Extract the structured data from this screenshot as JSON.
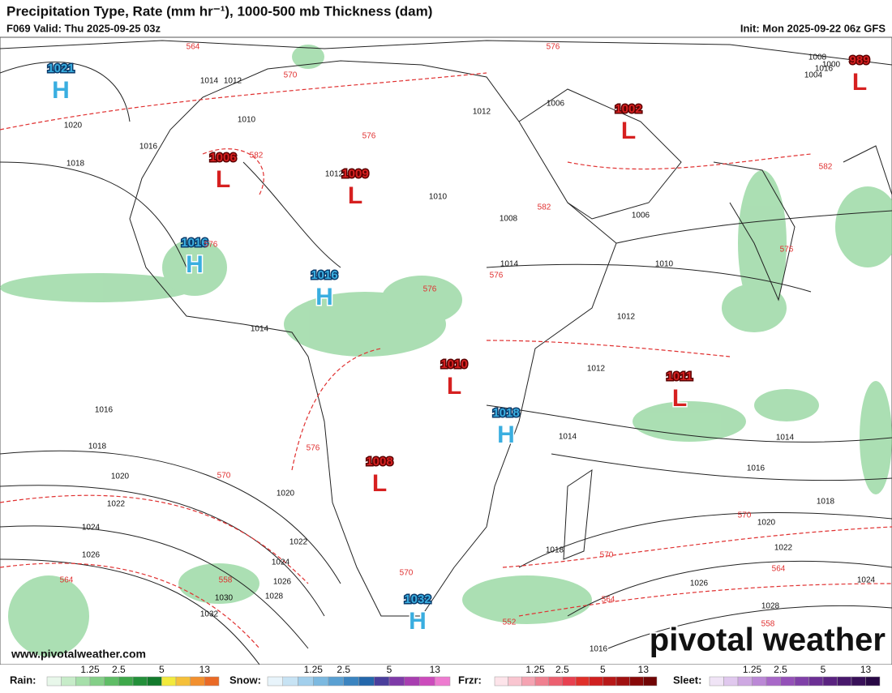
{
  "header": {
    "title": "Precipitation Type, Rate (mm hr⁻¹), 1000-500 mb Thickness (dam)",
    "valid": "F069 Valid: Thu 2025-09-25 03z",
    "init": "Init: Mon 2025-09-22 06z GFS"
  },
  "map": {
    "centers": [
      {
        "kind": "H",
        "value": "1021"
      },
      {
        "kind": "L",
        "value": "1006"
      },
      {
        "kind": "L",
        "value": "1009"
      },
      {
        "kind": "L",
        "value": "1002"
      },
      {
        "kind": "L",
        "value": "989"
      },
      {
        "kind": "H",
        "value": "1016"
      },
      {
        "kind": "H",
        "value": "1016"
      },
      {
        "kind": "L",
        "value": "1010"
      },
      {
        "kind": "L",
        "value": "1011"
      },
      {
        "kind": "H",
        "value": "1018"
      },
      {
        "kind": "L",
        "value": "1008"
      },
      {
        "kind": "H",
        "value": "1032"
      }
    ],
    "isobar_labels": [
      "1014",
      "1012",
      "1020",
      "1016",
      "1018",
      "1010",
      "1012",
      "1016",
      "1008",
      "1004",
      "1006",
      "1012",
      "1008",
      "1010",
      "1014",
      "1012",
      "1014",
      "1016",
      "1018",
      "1020",
      "1022",
      "1024",
      "1026",
      "1030",
      "1032",
      "1028",
      "1026",
      "1024",
      "1022",
      "1020",
      "1018",
      "1016",
      "1014",
      "1024",
      "1026",
      "1028",
      "1022",
      "1020",
      "1018",
      "1016",
      "1014",
      "1012",
      "1010",
      "1006",
      "1000"
    ],
    "thickness_labels": [
      "564",
      "570",
      "576",
      "582",
      "576",
      "570",
      "576",
      "582",
      "576",
      "570",
      "564",
      "558",
      "570",
      "564",
      "552",
      "558",
      "564",
      "570",
      "576",
      "582",
      "576",
      "576"
    ]
  },
  "url": "www.pivotalweather.com",
  "watermark": "pivotal weather",
  "legend": [
    {
      "name": "Rain:",
      "ticks": [
        "1.25",
        "2.5",
        "5",
        "13"
      ]
    },
    {
      "name": "Snow:",
      "ticks": [
        "1.25",
        "2.5",
        "5",
        "13"
      ]
    },
    {
      "name": "Frzr:",
      "ticks": [
        "1.25",
        "2.5",
        "5",
        "13"
      ]
    },
    {
      "name": "Sleet:",
      "ticks": [
        "1.25",
        "2.5",
        "5",
        "13"
      ]
    }
  ]
}
